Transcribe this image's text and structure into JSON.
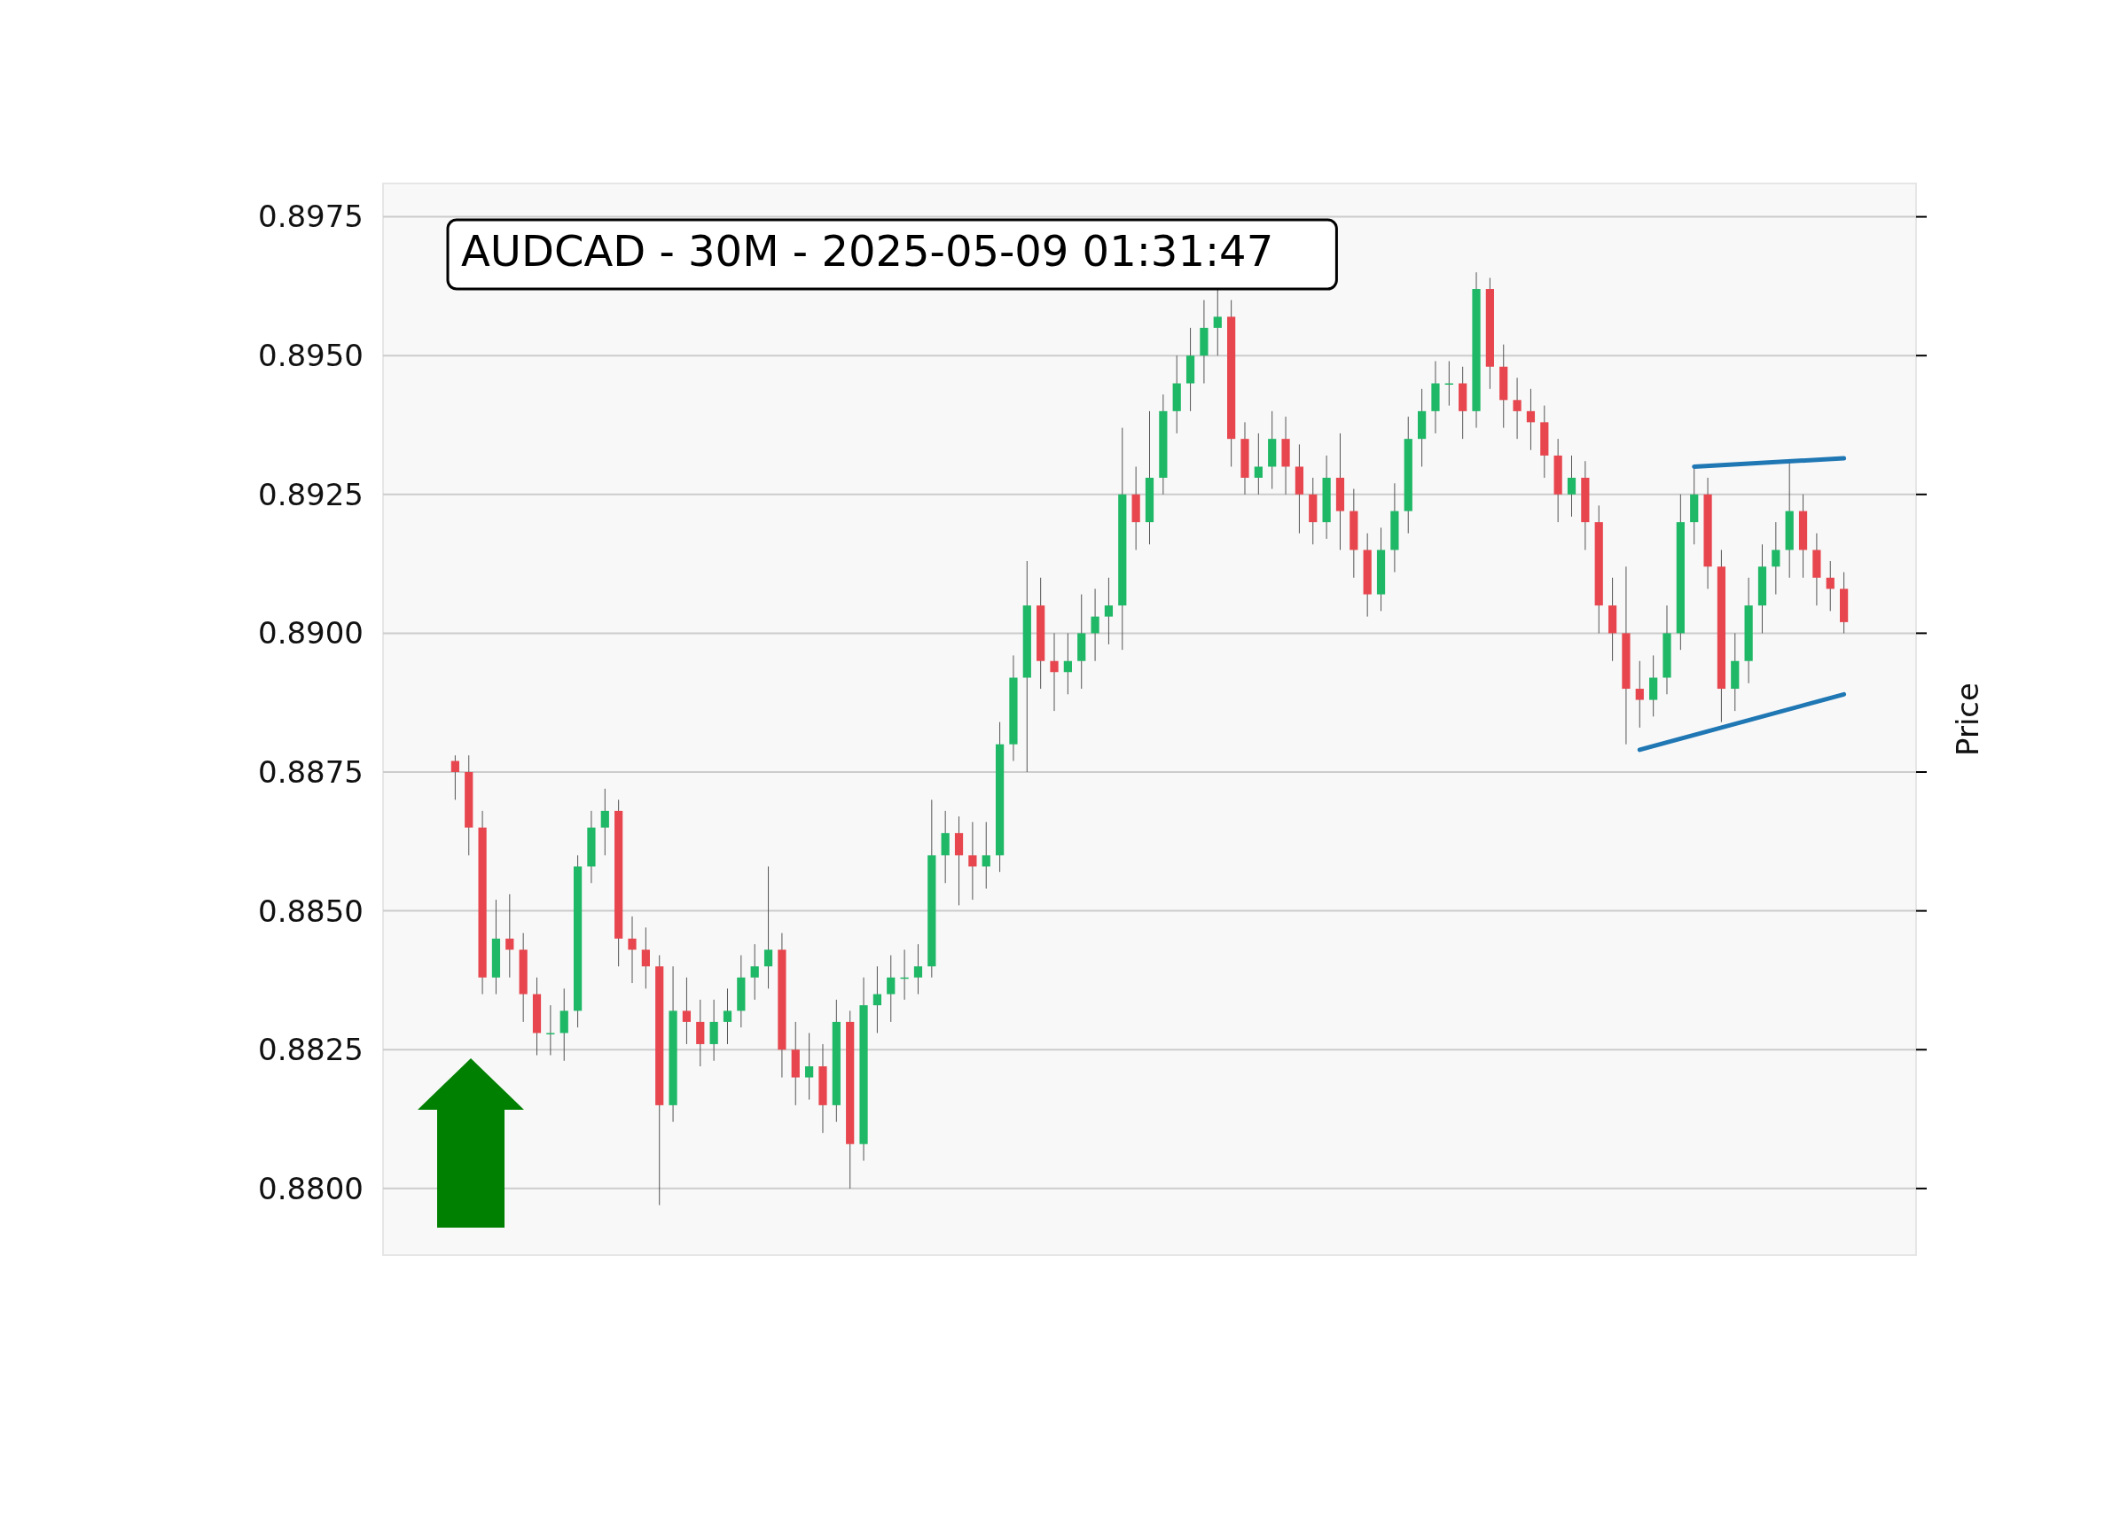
{
  "chart_data": {
    "type": "candlestick",
    "title": "AUDCAD - 30M - 2025-05-09 01:31:47",
    "ylabel": "Price",
    "categories": [
      null,
      null,
      null,
      null,
      null,
      null,
      null,
      null,
      null,
      null,
      null,
      null,
      null,
      null,
      null,
      null,
      null,
      null,
      null,
      null,
      null,
      null,
      null,
      null,
      null,
      null,
      null,
      null,
      null,
      null,
      null,
      null,
      null,
      null,
      null,
      null,
      null,
      null,
      null,
      null,
      null,
      null,
      null,
      null,
      null,
      null,
      null,
      null,
      null,
      null,
      null,
      null,
      null,
      null,
      null,
      null,
      null,
      null,
      null,
      null,
      null,
      null,
      null,
      null,
      null,
      null,
      null,
      null,
      null,
      null,
      null,
      null,
      null,
      null,
      null,
      null,
      null,
      null,
      null,
      null,
      null,
      null,
      null,
      null,
      null,
      null,
      null,
      null,
      null,
      null,
      null,
      null,
      null,
      null,
      null,
      null,
      null,
      null,
      null,
      null,
      null,
      null,
      null
    ],
    "ylim": [
      0.8788,
      0.8981
    ],
    "yticks": [
      {
        "value": 0.88,
        "label": "0.8800"
      },
      {
        "value": 0.8825,
        "label": "0.8825"
      },
      {
        "value": 0.885,
        "label": "0.8850"
      },
      {
        "value": 0.8875,
        "label": "0.8875"
      },
      {
        "value": 0.89,
        "label": "0.8900"
      },
      {
        "value": 0.8925,
        "label": "0.8925"
      },
      {
        "value": 0.895,
        "label": "0.8950"
      },
      {
        "value": 0.8975,
        "label": "0.8975"
      }
    ],
    "grid": "y",
    "tick_labels": "y",
    "ohlc": [
      [
        0.8877,
        0.8878,
        0.887,
        0.8875
      ],
      [
        0.8875,
        0.8878,
        0.886,
        0.8865
      ],
      [
        0.8865,
        0.8868,
        0.8835,
        0.8838
      ],
      [
        0.8838,
        0.8852,
        0.8835,
        0.8845
      ],
      [
        0.8845,
        0.8853,
        0.8838,
        0.8843
      ],
      [
        0.8843,
        0.8846,
        0.883,
        0.8835
      ],
      [
        0.8835,
        0.8838,
        0.8824,
        0.8828
      ],
      [
        0.8828,
        0.8833,
        0.8824,
        0.8828
      ],
      [
        0.8828,
        0.8836,
        0.8823,
        0.8832
      ],
      [
        0.8832,
        0.886,
        0.8829,
        0.8858
      ],
      [
        0.8858,
        0.8868,
        0.8855,
        0.8865
      ],
      [
        0.8865,
        0.8872,
        0.886,
        0.8868
      ],
      [
        0.8868,
        0.887,
        0.884,
        0.8845
      ],
      [
        0.8845,
        0.8849,
        0.8837,
        0.8843
      ],
      [
        0.8843,
        0.8847,
        0.8836,
        0.884
      ],
      [
        0.884,
        0.8842,
        0.8797,
        0.8815
      ],
      [
        0.8815,
        0.884,
        0.8812,
        0.8832
      ],
      [
        0.8832,
        0.8838,
        0.8826,
        0.883
      ],
      [
        0.883,
        0.8834,
        0.8822,
        0.8826
      ],
      [
        0.8826,
        0.8834,
        0.8823,
        0.883
      ],
      [
        0.883,
        0.8836,
        0.8826,
        0.8832
      ],
      [
        0.8832,
        0.8842,
        0.8829,
        0.8838
      ],
      [
        0.8838,
        0.8844,
        0.8834,
        0.884
      ],
      [
        0.884,
        0.8858,
        0.8836,
        0.8843
      ],
      [
        0.8843,
        0.8846,
        0.882,
        0.8825
      ],
      [
        0.8825,
        0.883,
        0.8815,
        0.882
      ],
      [
        0.882,
        0.8828,
        0.8816,
        0.8822
      ],
      [
        0.8822,
        0.8826,
        0.881,
        0.8815
      ],
      [
        0.8815,
        0.8834,
        0.8812,
        0.883
      ],
      [
        0.883,
        0.8832,
        0.88,
        0.8808
      ],
      [
        0.8808,
        0.8838,
        0.8805,
        0.8833
      ],
      [
        0.8833,
        0.884,
        0.8828,
        0.8835
      ],
      [
        0.8835,
        0.8842,
        0.883,
        0.8838
      ],
      [
        0.8838,
        0.8843,
        0.8834,
        0.8838
      ],
      [
        0.8838,
        0.8844,
        0.8835,
        0.884
      ],
      [
        0.884,
        0.887,
        0.8838,
        0.886
      ],
      [
        0.886,
        0.8868,
        0.8855,
        0.8864
      ],
      [
        0.8864,
        0.8867,
        0.8851,
        0.886
      ],
      [
        0.886,
        0.8866,
        0.8852,
        0.8858
      ],
      [
        0.8858,
        0.8866,
        0.8854,
        0.886
      ],
      [
        0.886,
        0.8884,
        0.8857,
        0.888
      ],
      [
        0.888,
        0.8896,
        0.8877,
        0.8892
      ],
      [
        0.8892,
        0.8913,
        0.8875,
        0.8905
      ],
      [
        0.8905,
        0.891,
        0.889,
        0.8895
      ],
      [
        0.8895,
        0.89,
        0.8886,
        0.8893
      ],
      [
        0.8893,
        0.89,
        0.8889,
        0.8895
      ],
      [
        0.8895,
        0.8907,
        0.889,
        0.89
      ],
      [
        0.89,
        0.8908,
        0.8895,
        0.8903
      ],
      [
        0.8903,
        0.891,
        0.8898,
        0.8905
      ],
      [
        0.8905,
        0.8937,
        0.8897,
        0.8925
      ],
      [
        0.8925,
        0.893,
        0.8915,
        0.892
      ],
      [
        0.892,
        0.894,
        0.8916,
        0.8928
      ],
      [
        0.8928,
        0.8943,
        0.8925,
        0.894
      ],
      [
        0.894,
        0.895,
        0.8936,
        0.8945
      ],
      [
        0.8945,
        0.8955,
        0.894,
        0.895
      ],
      [
        0.895,
        0.896,
        0.8945,
        0.8955
      ],
      [
        0.8955,
        0.8962,
        0.895,
        0.8957
      ],
      [
        0.8957,
        0.896,
        0.893,
        0.8935
      ],
      [
        0.8935,
        0.8938,
        0.8925,
        0.8928
      ],
      [
        0.8928,
        0.8936,
        0.8925,
        0.893
      ],
      [
        0.893,
        0.894,
        0.8926,
        0.8935
      ],
      [
        0.8935,
        0.8939,
        0.8925,
        0.893
      ],
      [
        0.893,
        0.8934,
        0.8918,
        0.8925
      ],
      [
        0.8925,
        0.8928,
        0.8916,
        0.892
      ],
      [
        0.892,
        0.8932,
        0.8917,
        0.8928
      ],
      [
        0.8928,
        0.8936,
        0.8915,
        0.8922
      ],
      [
        0.8922,
        0.8926,
        0.891,
        0.8915
      ],
      [
        0.8915,
        0.8918,
        0.8903,
        0.8907
      ],
      [
        0.8907,
        0.8919,
        0.8904,
        0.8915
      ],
      [
        0.8915,
        0.8927,
        0.8911,
        0.8922
      ],
      [
        0.8922,
        0.8939,
        0.8918,
        0.8935
      ],
      [
        0.8935,
        0.8944,
        0.893,
        0.894
      ],
      [
        0.894,
        0.8949,
        0.8936,
        0.8945
      ],
      [
        0.8945,
        0.8949,
        0.8941,
        0.8945
      ],
      [
        0.8945,
        0.8948,
        0.8935,
        0.894
      ],
      [
        0.894,
        0.8965,
        0.8937,
        0.8962
      ],
      [
        0.8962,
        0.8964,
        0.8944,
        0.8948
      ],
      [
        0.8948,
        0.8952,
        0.8937,
        0.8942
      ],
      [
        0.8942,
        0.8946,
        0.8935,
        0.894
      ],
      [
        0.894,
        0.8944,
        0.8933,
        0.8938
      ],
      [
        0.8938,
        0.8941,
        0.8928,
        0.8932
      ],
      [
        0.8932,
        0.8935,
        0.892,
        0.8925
      ],
      [
        0.8925,
        0.8932,
        0.8921,
        0.8928
      ],
      [
        0.8928,
        0.8931,
        0.8915,
        0.892
      ],
      [
        0.892,
        0.8923,
        0.89,
        0.8905
      ],
      [
        0.8905,
        0.891,
        0.8895,
        0.89
      ],
      [
        0.89,
        0.8912,
        0.888,
        0.889
      ],
      [
        0.889,
        0.8895,
        0.8883,
        0.8888
      ],
      [
        0.8888,
        0.8896,
        0.8885,
        0.8892
      ],
      [
        0.8892,
        0.8905,
        0.8889,
        0.89
      ],
      [
        0.89,
        0.8925,
        0.8897,
        0.892
      ],
      [
        0.892,
        0.893,
        0.8916,
        0.8925
      ],
      [
        0.8925,
        0.8928,
        0.8908,
        0.8912
      ],
      [
        0.8912,
        0.8915,
        0.8884,
        0.889
      ],
      [
        0.889,
        0.89,
        0.8886,
        0.8895
      ],
      [
        0.8895,
        0.891,
        0.8891,
        0.8905
      ],
      [
        0.8905,
        0.8916,
        0.89,
        0.8912
      ],
      [
        0.8912,
        0.892,
        0.8907,
        0.8915
      ],
      [
        0.8915,
        0.8931,
        0.891,
        0.8922
      ],
      [
        0.8922,
        0.8925,
        0.891,
        0.8915
      ],
      [
        0.8915,
        0.8918,
        0.8905,
        0.891
      ],
      [
        0.891,
        0.8913,
        0.8904,
        0.8908
      ],
      [
        0.8908,
        0.8911,
        0.89,
        0.8902
      ]
    ],
    "colors": [
      "#e8464e",
      "#e8464e",
      "#e8464e",
      "#1fb866",
      "#e8464e",
      "#e8464e",
      "#e8464e",
      "#1fb866",
      "#1fb866",
      "#1fb866",
      "#1fb866",
      "#1fb866",
      "#e8464e",
      "#e8464e",
      "#e8464e",
      "#e8464e",
      "#1fb866",
      "#e8464e",
      "#e8464e",
      "#1fb866",
      "#1fb866",
      "#1fb866",
      "#1fb866",
      "#1fb866",
      "#e8464e",
      "#e8464e",
      "#1fb866",
      "#e8464e",
      "#1fb866",
      "#e8464e",
      "#1fb866",
      "#1fb866",
      "#1fb866",
      "#1fb866",
      "#1fb866",
      "#1fb866",
      "#1fb866",
      "#e8464e",
      "#e8464e",
      "#1fb866",
      "#1fb866",
      "#1fb866",
      "#1fb866",
      "#e8464e",
      "#e8464e",
      "#1fb866",
      "#1fb866",
      "#1fb866",
      "#1fb866",
      "#1fb866",
      "#e8464e",
      "#1fb866",
      "#1fb866",
      "#1fb866",
      "#1fb866",
      "#1fb866",
      "#1fb866",
      "#e8464e",
      "#e8464e",
      "#1fb866",
      "#1fb866",
      "#e8464e",
      "#e8464e",
      "#e8464e",
      "#1fb866",
      "#e8464e",
      "#e8464e",
      "#e8464e",
      "#1fb866",
      "#1fb866",
      "#1fb866",
      "#1fb866",
      "#1fb866",
      "#1fb866",
      "#e8464e",
      "#1fb866",
      "#e8464e",
      "#e8464e",
      "#e8464e",
      "#e8464e",
      "#e8464e",
      "#e8464e",
      "#1fb866",
      "#e8464e",
      "#e8464e",
      "#e8464e",
      "#e8464e",
      "#e8464e",
      "#1fb866",
      "#1fb866",
      "#1fb866",
      "#1fb866",
      "#e8464e",
      "#e8464e",
      "#1fb866",
      "#1fb866",
      "#1fb866",
      "#1fb866",
      "#1fb866",
      "#e8464e",
      "#e8464e",
      "#e8464e",
      "#e8464e"
    ],
    "series": [
      {
        "type": "line",
        "color": "#1f77b4",
        "values": [
          null,
          null,
          null,
          null,
          null,
          null,
          null,
          null,
          null,
          null,
          null,
          null,
          null,
          null,
          null,
          null,
          null,
          null,
          null,
          null,
          null,
          null,
          null,
          null,
          null,
          null,
          null,
          null,
          null,
          null,
          null,
          null,
          null,
          null,
          null,
          null,
          null,
          null,
          null,
          null,
          null,
          null,
          null,
          null,
          null,
          null,
          null,
          null,
          null,
          null,
          null,
          null,
          null,
          null,
          null,
          null,
          null,
          null,
          null,
          null,
          null,
          null,
          null,
          null,
          null,
          null,
          null,
          null,
          null,
          null,
          null,
          null,
          null,
          null,
          null,
          null,
          null,
          null,
          null,
          null,
          null,
          null,
          null,
          null,
          null,
          null,
          null,
          null,
          null,
          null,
          null,
          0.893,
          null,
          null,
          null,
          null,
          null,
          null,
          null,
          null,
          null,
          null,
          0.89315
        ]
      },
      {
        "type": "line",
        "color": "#1f77b4",
        "values": [
          null,
          null,
          null,
          null,
          null,
          null,
          null,
          null,
          null,
          null,
          null,
          null,
          null,
          null,
          null,
          null,
          null,
          null,
          null,
          null,
          null,
          null,
          null,
          null,
          null,
          null,
          null,
          null,
          null,
          null,
          null,
          null,
          null,
          null,
          null,
          null,
          null,
          null,
          null,
          null,
          null,
          null,
          null,
          null,
          null,
          null,
          null,
          null,
          null,
          null,
          null,
          null,
          null,
          null,
          null,
          null,
          null,
          null,
          null,
          null,
          null,
          null,
          null,
          null,
          null,
          null,
          null,
          null,
          null,
          null,
          null,
          null,
          null,
          null,
          null,
          null,
          null,
          null,
          null,
          null,
          null,
          null,
          null,
          null,
          null,
          null,
          null,
          0.8879,
          null,
          null,
          null,
          null,
          null,
          null,
          null,
          null,
          null,
          null,
          null,
          null,
          null,
          null,
          0.8889
        ]
      }
    ]
  }
}
